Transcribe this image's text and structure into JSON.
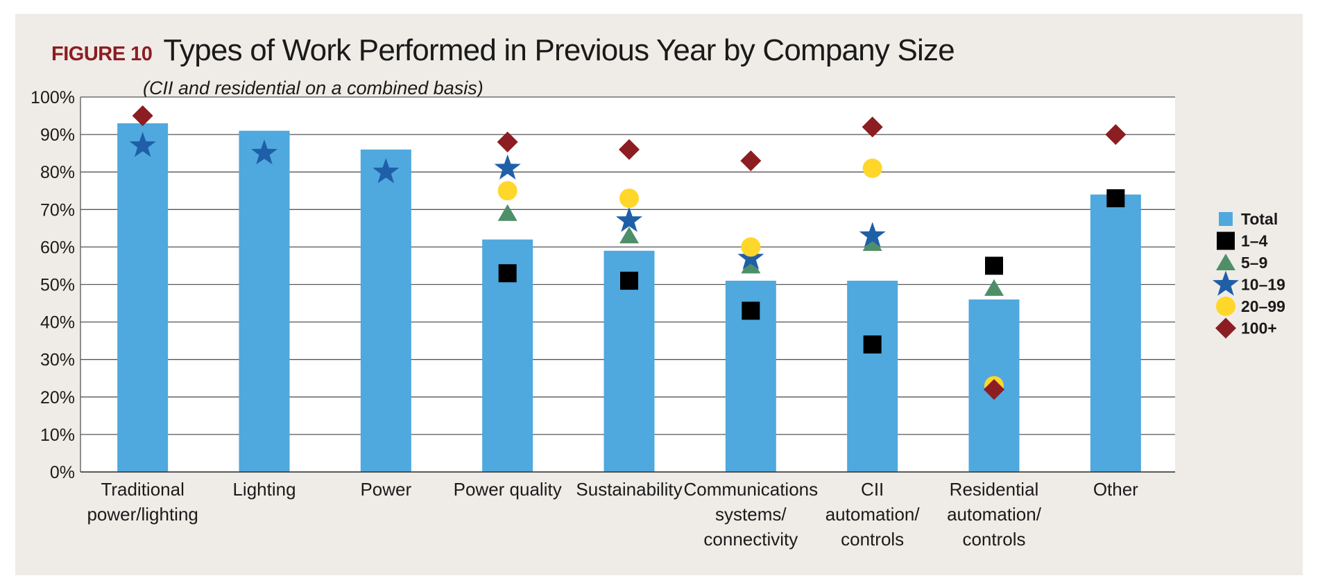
{
  "figure": {
    "label": "FIGURE 10",
    "title": "Types of Work Performed in Previous Year by Company Size",
    "subtitle": "(CII and residential on a combined basis)"
  },
  "chart_data": {
    "type": "bar",
    "title": "Types of Work Performed in Previous Year by Company Size",
    "subtitle": "(CII and residential on a combined basis)",
    "xlabel": "",
    "ylabel": "",
    "ylim": [
      0,
      100
    ],
    "y_ticks": [
      0,
      10,
      20,
      30,
      40,
      50,
      60,
      70,
      80,
      90,
      100
    ],
    "y_tick_labels": [
      "0%",
      "10%",
      "20%",
      "30%",
      "40%",
      "50%",
      "60%",
      "70%",
      "80%",
      "90%",
      "100%"
    ],
    "grid": true,
    "legend_position": "right",
    "categories": [
      [
        "Traditional",
        "power/lighting"
      ],
      [
        "Lighting"
      ],
      [
        "Power"
      ],
      [
        "Power quality"
      ],
      [
        "Sustainability"
      ],
      [
        "Communications",
        "systems/",
        "connectivity"
      ],
      [
        "CII",
        "automation/",
        "controls"
      ],
      [
        "Residential",
        "automation/",
        "controls"
      ],
      [
        "Other"
      ]
    ],
    "series": [
      {
        "name": "Total",
        "marker": "bar",
        "color": "#4fa8de",
        "values": [
          93,
          91,
          86,
          62,
          59,
          51,
          51,
          46,
          74
        ]
      },
      {
        "name": "1–4",
        "marker": "square",
        "color": "#000000",
        "values": [
          null,
          null,
          null,
          53,
          51,
          43,
          34,
          55,
          73
        ]
      },
      {
        "name": "5–9",
        "marker": "triangle",
        "color": "#4e8f6a",
        "values": [
          null,
          null,
          null,
          69,
          63,
          55,
          61,
          49,
          null
        ]
      },
      {
        "name": "10–19",
        "marker": "star",
        "color": "#1f5fa8",
        "values": [
          87,
          85,
          80,
          81,
          67,
          57,
          63,
          null,
          null
        ]
      },
      {
        "name": "20–99",
        "marker": "circle",
        "color": "#ffd72a",
        "values": [
          null,
          null,
          null,
          75,
          73,
          60,
          81,
          23,
          null
        ]
      },
      {
        "name": "100+",
        "marker": "diamond",
        "color": "#8c1d22",
        "values": [
          95,
          null,
          null,
          88,
          86,
          83,
          92,
          22,
          90
        ]
      }
    ]
  }
}
